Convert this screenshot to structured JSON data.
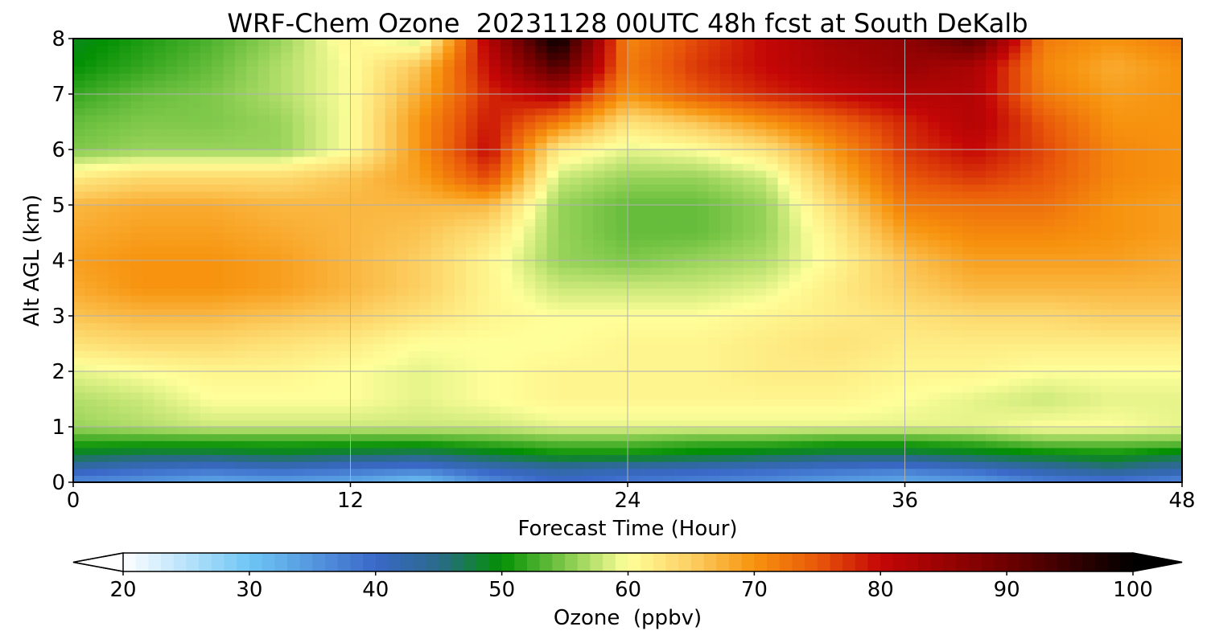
{
  "chart_data": {
    "type": "heatmap",
    "title": "WRF-Chem Ozone  20231128 00UTC 48h fcst at South DeKalb",
    "xlabel": "Forecast Time (Hour)",
    "ylabel": "Alt AGL (km)",
    "xlim": [
      0,
      48
    ],
    "ylim": [
      0,
      8
    ],
    "x_ticks": [
      "0",
      "12",
      "24",
      "36",
      "48"
    ],
    "y_ticks": [
      "0",
      "1",
      "2",
      "3",
      "4",
      "5",
      "6",
      "7",
      "8"
    ],
    "grid": true,
    "x": [
      0,
      3,
      6,
      9,
      12,
      15,
      18,
      21,
      24,
      27,
      30,
      33,
      36,
      39,
      42,
      45,
      48
    ],
    "y": [
      0,
      0.25,
      0.5,
      0.75,
      1.0,
      1.5,
      2.0,
      2.5,
      3.0,
      3.5,
      4.0,
      4.5,
      5.0,
      5.5,
      6.0,
      6.5,
      7.0,
      7.5,
      8.0
    ],
    "z": [
      [
        36,
        35,
        33,
        34,
        33,
        30,
        36,
        40,
        38,
        37,
        36,
        34,
        33,
        34,
        37,
        38,
        36
      ],
      [
        42,
        40,
        39,
        40,
        39,
        38,
        41,
        43,
        42,
        41,
        40,
        39,
        38,
        40,
        43,
        45,
        43
      ],
      [
        48,
        47,
        47,
        48,
        47,
        46,
        48,
        50,
        50,
        49,
        48,
        47,
        47,
        48,
        49,
        50,
        48
      ],
      [
        52,
        52,
        52,
        52,
        52,
        52,
        53,
        54,
        54,
        53,
        53,
        52,
        52,
        53,
        55,
        55,
        55
      ],
      [
        56,
        57,
        58,
        58,
        58,
        58,
        58,
        59,
        59,
        59,
        59,
        59,
        59,
        59,
        60,
        60,
        59
      ],
      [
        57,
        58,
        60,
        60,
        60,
        59,
        60,
        61,
        61,
        61,
        61,
        61,
        60,
        59,
        58,
        59,
        59
      ],
      [
        59,
        60,
        61,
        61,
        60,
        59,
        60,
        61,
        61,
        61,
        62,
        62,
        61,
        61,
        60,
        60,
        60
      ],
      [
        63,
        64,
        64,
        63,
        62,
        60,
        60,
        60,
        61,
        61,
        62,
        63,
        62,
        62,
        62,
        62,
        62
      ],
      [
        66,
        67,
        67,
        66,
        65,
        63,
        61,
        60,
        60,
        60,
        61,
        62,
        63,
        64,
        64,
        65,
        65
      ],
      [
        68,
        70,
        70,
        69,
        67,
        65,
        61,
        58,
        58,
        58,
        59,
        62,
        65,
        67,
        67,
        67,
        67
      ],
      [
        69,
        70,
        70,
        69,
        67,
        65,
        61,
        56,
        55,
        56,
        57,
        61,
        66,
        69,
        69,
        69,
        68
      ],
      [
        68,
        69,
        69,
        68,
        67,
        66,
        63,
        56,
        54,
        54,
        56,
        62,
        69,
        71,
        71,
        70,
        69
      ],
      [
        67,
        68,
        68,
        67,
        67,
        67,
        67,
        56,
        54,
        54,
        56,
        64,
        72,
        73,
        73,
        70,
        69
      ],
      [
        62,
        64,
        64,
        64,
        66,
        69,
        76,
        58,
        56,
        56,
        58,
        67,
        75,
        77,
        75,
        71,
        70
      ],
      [
        55,
        56,
        56,
        56,
        60,
        70,
        80,
        62,
        59,
        60,
        63,
        70,
        77,
        80,
        76,
        71,
        70
      ],
      [
        54,
        55,
        55,
        56,
        60,
        70,
        79,
        72,
        63,
        66,
        70,
        74,
        78,
        82,
        75,
        70,
        70
      ],
      [
        52,
        54,
        55,
        57,
        60,
        68,
        78,
        82,
        70,
        75,
        78,
        80,
        82,
        82,
        72,
        69,
        70
      ],
      [
        50,
        52,
        54,
        57,
        60,
        66,
        80,
        93,
        72,
        77,
        80,
        83,
        85,
        83,
        71,
        68,
        70
      ],
      [
        49,
        51,
        53,
        56,
        61,
        58,
        82,
        100,
        71,
        76,
        80,
        84,
        86,
        92,
        72,
        70,
        72
      ]
    ],
    "colorbar": {
      "label": "Ozone  (ppbv)",
      "ticks": [
        "20",
        "30",
        "40",
        "50",
        "60",
        "70",
        "80",
        "90",
        "100"
      ],
      "min": 20,
      "max": 100,
      "extend": "both",
      "stops": [
        {
          "v": 20,
          "c": "#ffffff"
        },
        {
          "v": 30,
          "c": "#6fc6f5"
        },
        {
          "v": 40,
          "c": "#3a68c8"
        },
        {
          "v": 45,
          "c": "#2a6a8a"
        },
        {
          "v": 50,
          "c": "#039003"
        },
        {
          "v": 55,
          "c": "#7fc84a"
        },
        {
          "v": 60,
          "c": "#ffff9a"
        },
        {
          "v": 65,
          "c": "#fccf62"
        },
        {
          "v": 70,
          "c": "#f7930e"
        },
        {
          "v": 75,
          "c": "#e9580a"
        },
        {
          "v": 80,
          "c": "#c40606"
        },
        {
          "v": 90,
          "c": "#6e0000"
        },
        {
          "v": 100,
          "c": "#000000"
        }
      ]
    }
  }
}
